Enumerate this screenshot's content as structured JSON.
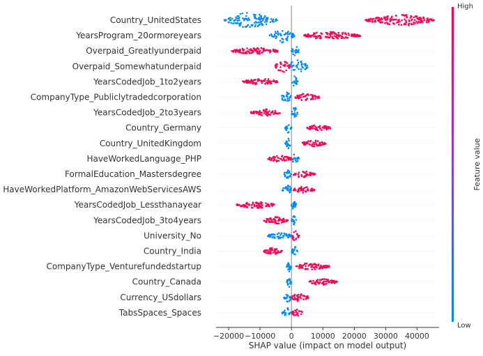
{
  "chart_data": {
    "type": "scatter",
    "subtype": "shap-beeswarm",
    "xlabel": "SHAP value (impact on model output)",
    "xlim": [
      -24000,
      47000
    ],
    "xticks": [
      -20000,
      -10000,
      0,
      10000,
      20000,
      30000,
      40000
    ],
    "xtick_labels": [
      "−20000",
      "−10000",
      "0",
      "10000",
      "20000",
      "30000",
      "40000"
    ],
    "colorbar": {
      "title": "Feature value",
      "high_label": "High",
      "low_label": "Low",
      "high_color": "#ff0052",
      "low_color": "#008bfb"
    },
    "grid": false,
    "features": [
      {
        "name": "Country_UnitedStates",
        "low": {
          "min": -21500,
          "max": -4500,
          "peak": -14000,
          "height": 10
        },
        "high": {
          "min": 23500,
          "max": 45500,
          "peak": 36000,
          "height": 7
        }
      },
      {
        "name": "YearsProgram_20ormoreyears",
        "low": {
          "min": -7000,
          "max": 1000,
          "peak": -3000,
          "height": 9
        },
        "high": {
          "min": 4000,
          "max": 22000,
          "peak": 11000,
          "height": 5
        }
      },
      {
        "name": "Overpaid_Greatlyunderpaid",
        "low": {
          "min": 0,
          "max": 2500,
          "peak": 1200,
          "height": 7
        },
        "high": {
          "min": -19000,
          "max": -4000,
          "peak": -12000,
          "height": 4
        }
      },
      {
        "name": "Overpaid_Somewhatunderpaid",
        "low": {
          "min": -1000,
          "max": 5500,
          "peak": 1500,
          "height": 9
        },
        "high": {
          "min": -5500,
          "max": -500,
          "peak": -2500,
          "height": 8
        }
      },
      {
        "name": "YearsCodedJob_1to2years",
        "low": {
          "min": 0,
          "max": 2000,
          "peak": 1000,
          "height": 7
        },
        "high": {
          "min": -15500,
          "max": -4500,
          "peak": -9000,
          "height": 4
        }
      },
      {
        "name": "CompanyType_Publiclytradedcorporation",
        "low": {
          "min": -3500,
          "max": 0,
          "peak": -1500,
          "height": 6
        },
        "high": {
          "min": 1000,
          "max": 9000,
          "peak": 4000,
          "height": 4
        }
      },
      {
        "name": "YearsCodedJob_2to3years",
        "low": {
          "min": 0,
          "max": 2000,
          "peak": 1000,
          "height": 7
        },
        "high": {
          "min": -13000,
          "max": -3500,
          "peak": -8000,
          "height": 4
        }
      },
      {
        "name": "Country_Germany",
        "low": {
          "min": -2000,
          "max": 0,
          "peak": -1000,
          "height": 6
        },
        "high": {
          "min": 5000,
          "max": 12500,
          "peak": 8000,
          "height": 4
        }
      },
      {
        "name": "Country_UnitedKingdom",
        "low": {
          "min": -2000,
          "max": 0,
          "peak": -1000,
          "height": 6
        },
        "high": {
          "min": 3500,
          "max": 11000,
          "peak": 6000,
          "height": 4
        }
      },
      {
        "name": "HaveWorkedLanguage_PHP",
        "low": {
          "min": 0,
          "max": 2500,
          "peak": 1000,
          "height": 6
        },
        "high": {
          "min": -7500,
          "max": 0,
          "peak": -3500,
          "height": 4
        }
      },
      {
        "name": "FormalEducation_Mastersdegree",
        "low": {
          "min": -2500,
          "max": 0,
          "peak": -1000,
          "height": 6
        },
        "high": {
          "min": 500,
          "max": 7500,
          "peak": 3000,
          "height": 4
        }
      },
      {
        "name": "HaveWorkedPlatform_AmazonWebServicesAWS",
        "low": {
          "min": -3000,
          "max": 0,
          "peak": -1000,
          "height": 6
        },
        "high": {
          "min": 500,
          "max": 7500,
          "peak": 3000,
          "height": 4
        }
      },
      {
        "name": "YearsCodedJob_Lessthanayear",
        "low": {
          "min": 0,
          "max": 1500,
          "peak": 700,
          "height": 6
        },
        "high": {
          "min": -17500,
          "max": -5500,
          "peak": -11000,
          "height": 4
        }
      },
      {
        "name": "YearsCodedJob_3to4years",
        "low": {
          "min": 0,
          "max": 1500,
          "peak": 700,
          "height": 6
        },
        "high": {
          "min": -9500,
          "max": -1000,
          "peak": -5000,
          "height": 4
        }
      },
      {
        "name": "University_No",
        "low": {
          "min": -7500,
          "max": 0,
          "peak": -3000,
          "height": 4
        },
        "high": {
          "min": 0,
          "max": 2500,
          "peak": 1000,
          "height": 7
        }
      },
      {
        "name": "Country_India",
        "low": {
          "min": 0,
          "max": 2000,
          "peak": 1000,
          "height": 6
        },
        "high": {
          "min": -9000,
          "max": -3000,
          "peak": -6000,
          "height": 4
        }
      },
      {
        "name": "CompanyType_Venturefundedstartup",
        "low": {
          "min": -1500,
          "max": 0,
          "peak": -700,
          "height": 6
        },
        "high": {
          "min": 1500,
          "max": 12000,
          "peak": 5000,
          "height": 4
        }
      },
      {
        "name": "Country_Canada",
        "low": {
          "min": -1500,
          "max": 0,
          "peak": -700,
          "height": 6
        },
        "high": {
          "min": 5500,
          "max": 14500,
          "peak": 9000,
          "height": 4
        }
      },
      {
        "name": "Currency_USdollars",
        "low": {
          "min": -2500,
          "max": 0,
          "peak": -1000,
          "height": 6
        },
        "high": {
          "min": 0,
          "max": 5500,
          "peak": 2000,
          "height": 5
        }
      },
      {
        "name": "TabsSpaces_Spaces",
        "low": {
          "min": -3000,
          "max": 0,
          "peak": -1000,
          "height": 6
        },
        "high": {
          "min": 0,
          "max": 3500,
          "peak": 1500,
          "height": 5
        }
      }
    ]
  }
}
